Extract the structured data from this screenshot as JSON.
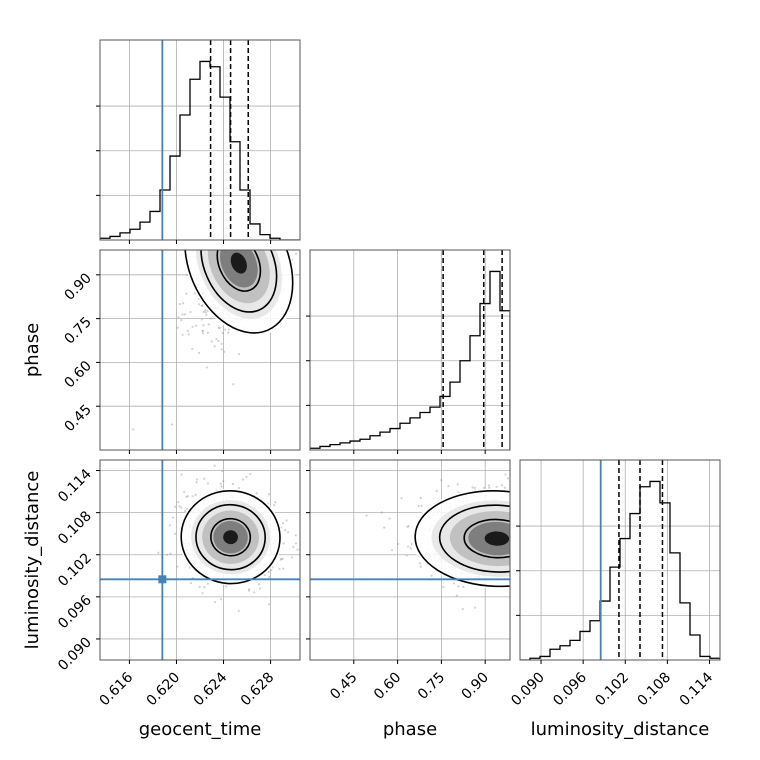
{
  "chart_data": {
    "type": "corner",
    "parameters": [
      "geocent_time",
      "phase",
      "luminosity_distance"
    ],
    "axes": {
      "geocent_time": {
        "range": [
          0.6135,
          0.6305
        ],
        "ticks": [
          0.616,
          0.62,
          0.624,
          0.628
        ],
        "tick_labels": [
          "0.616",
          "0.620",
          "0.624",
          "0.628"
        ]
      },
      "phase": {
        "range": [
          0.3,
          0.985
        ],
        "ticks": [
          0.45,
          0.6,
          0.75,
          0.9
        ],
        "tick_labels": [
          "0.45",
          "0.60",
          "0.75",
          "0.90"
        ]
      },
      "luminosity_distance": {
        "range": [
          0.087,
          0.1155
        ],
        "ticks": [
          0.09,
          0.096,
          0.102,
          0.108,
          0.114
        ],
        "tick_labels": [
          "0.090",
          "0.096",
          "0.102",
          "0.108",
          "0.114"
        ]
      }
    },
    "truths": {
      "geocent_time": 0.6188,
      "luminosity_distance": 0.0985
    },
    "quantiles": {
      "geocent_time": [
        0.6229,
        0.6246,
        0.6261
      ],
      "phase": [
        0.756,
        0.895,
        0.958
      ],
      "luminosity_distance": [
        0.1011,
        0.1041,
        0.1073
      ]
    },
    "histograms": {
      "geocent_time": [
        0.01,
        0.02,
        0.04,
        0.06,
        0.1,
        0.16,
        0.28,
        0.47,
        0.7,
        0.9,
        1.0,
        0.97,
        0.8,
        0.55,
        0.28,
        0.09,
        0.03,
        0.01,
        0.0,
        0.0
      ],
      "phase": [
        0.01,
        0.02,
        0.03,
        0.04,
        0.05,
        0.06,
        0.08,
        0.1,
        0.12,
        0.15,
        0.18,
        0.21,
        0.24,
        0.3,
        0.38,
        0.5,
        0.64,
        0.82,
        1.0,
        0.78
      ],
      "luminosity_distance": [
        0.0,
        0.01,
        0.02,
        0.06,
        0.08,
        0.11,
        0.16,
        0.22,
        0.33,
        0.52,
        0.68,
        0.82,
        0.97,
        1.0,
        0.88,
        0.6,
        0.32,
        0.14,
        0.02,
        0.01
      ]
    },
    "hist_ylim": [
      0,
      1.12
    ],
    "colors": {
      "truth": "#4682b4",
      "lines": "#000000",
      "grid": "#b0b0b0"
    },
    "grid": true
  }
}
